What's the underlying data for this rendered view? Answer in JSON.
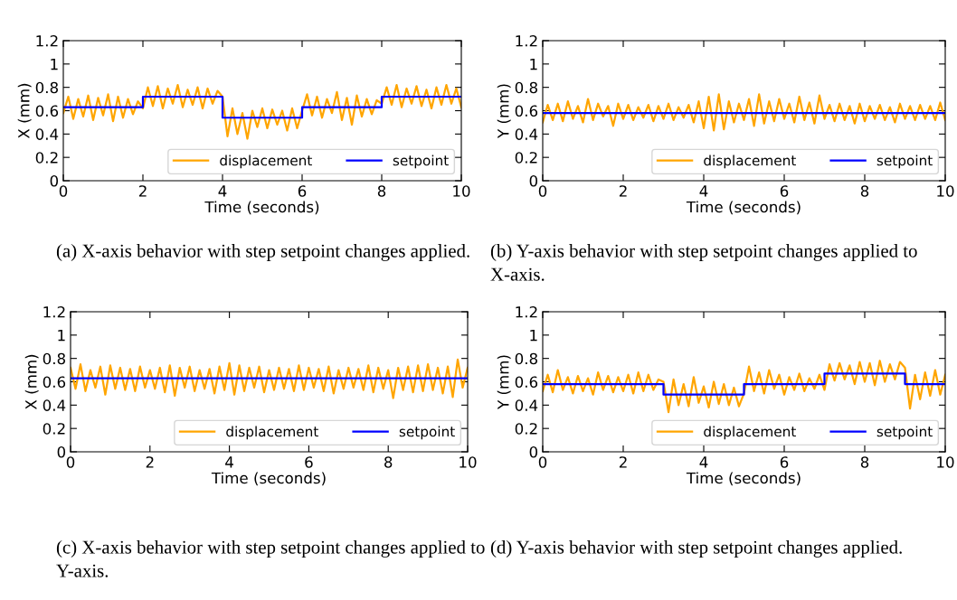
{
  "chart_data": [
    {
      "type": "line",
      "xlabel": "Time (seconds)",
      "ylabel": "X (mm)",
      "xlim": [
        0,
        10
      ],
      "ylim": [
        0,
        1.2
      ],
      "xticks": [
        0,
        2,
        4,
        6,
        8,
        10
      ],
      "yticks": [
        0,
        0.2,
        0.4,
        0.6,
        0.8,
        1,
        1.2
      ],
      "grid": false,
      "legend": "bottom right",
      "annotations": [
        "(a) X-axis behavior with step setpoint changes applied."
      ],
      "x": [
        0,
        0.125,
        0.25,
        0.375,
        0.5,
        0.625,
        0.75,
        0.875,
        1,
        1.125,
        1.25,
        1.375,
        1.5,
        1.625,
        1.75,
        1.875,
        2,
        2.125,
        2.25,
        2.375,
        2.5,
        2.625,
        2.75,
        2.875,
        3,
        3.125,
        3.25,
        3.375,
        3.5,
        3.625,
        3.75,
        3.875,
        4,
        4.125,
        4.25,
        4.375,
        4.5,
        4.625,
        4.75,
        4.875,
        5,
        5.125,
        5.25,
        5.375,
        5.5,
        5.625,
        5.75,
        5.875,
        6,
        6.125,
        6.25,
        6.375,
        6.5,
        6.625,
        6.75,
        6.875,
        7,
        7.125,
        7.25,
        7.375,
        7.5,
        7.625,
        7.75,
        7.875,
        8,
        8.125,
        8.25,
        8.375,
        8.5,
        8.625,
        8.75,
        8.875,
        9,
        9.125,
        9.25,
        9.375,
        9.5,
        9.625,
        9.75,
        9.875,
        10
      ],
      "series": [
        {
          "name": "displacement",
          "color": "#ffa500",
          "values": [
            0.58,
            0.72,
            0.53,
            0.7,
            0.55,
            0.73,
            0.52,
            0.71,
            0.56,
            0.74,
            0.51,
            0.72,
            0.54,
            0.7,
            0.57,
            0.68,
            0.62,
            0.8,
            0.64,
            0.81,
            0.62,
            0.79,
            0.66,
            0.82,
            0.63,
            0.78,
            0.65,
            0.8,
            0.62,
            0.79,
            0.66,
            0.77,
            0.72,
            0.38,
            0.62,
            0.4,
            0.58,
            0.36,
            0.6,
            0.46,
            0.62,
            0.45,
            0.61,
            0.48,
            0.6,
            0.43,
            0.62,
            0.45,
            0.6,
            0.74,
            0.56,
            0.72,
            0.54,
            0.7,
            0.58,
            0.76,
            0.52,
            0.71,
            0.48,
            0.73,
            0.55,
            0.7,
            0.57,
            0.69,
            0.66,
            0.8,
            0.65,
            0.82,
            0.63,
            0.79,
            0.66,
            0.81,
            0.64,
            0.78,
            0.62,
            0.8,
            0.65,
            0.82,
            0.66,
            0.79,
            0.63
          ]
        },
        {
          "name": "setpoint",
          "color": "#0000ff",
          "x": [
            0,
            2,
            2,
            4,
            4,
            6,
            6,
            8,
            8,
            10
          ],
          "values": [
            0.63,
            0.63,
            0.72,
            0.72,
            0.54,
            0.54,
            0.63,
            0.63,
            0.72,
            0.72
          ]
        }
      ]
    },
    {
      "type": "line",
      "xlabel": "Time (seconds)",
      "ylabel": "Y (mm)",
      "xlim": [
        0,
        10
      ],
      "ylim": [
        0,
        1.2
      ],
      "xticks": [
        0,
        2,
        4,
        6,
        8,
        10
      ],
      "yticks": [
        0,
        0.2,
        0.4,
        0.6,
        0.8,
        1,
        1.2
      ],
      "grid": false,
      "legend": "bottom right",
      "annotations": [
        "(b) Y-axis behavior with step setpoint changes applied to X-axis."
      ],
      "x": [
        0,
        0.125,
        0.25,
        0.375,
        0.5,
        0.625,
        0.75,
        0.875,
        1,
        1.125,
        1.25,
        1.375,
        1.5,
        1.625,
        1.75,
        1.875,
        2,
        2.125,
        2.25,
        2.375,
        2.5,
        2.625,
        2.75,
        2.875,
        3,
        3.125,
        3.25,
        3.375,
        3.5,
        3.625,
        3.75,
        3.875,
        4,
        4.125,
        4.25,
        4.375,
        4.5,
        4.625,
        4.75,
        4.875,
        5,
        5.125,
        5.25,
        5.375,
        5.5,
        5.625,
        5.75,
        5.875,
        6,
        6.125,
        6.25,
        6.375,
        6.5,
        6.625,
        6.75,
        6.875,
        7,
        7.125,
        7.25,
        7.375,
        7.5,
        7.625,
        7.75,
        7.875,
        8,
        8.125,
        8.25,
        8.375,
        8.5,
        8.625,
        8.75,
        8.875,
        9,
        9.125,
        9.25,
        9.375,
        9.5,
        9.625,
        9.75,
        9.875,
        10
      ],
      "series": [
        {
          "name": "displacement",
          "color": "#ffa500",
          "values": [
            0.5,
            0.65,
            0.52,
            0.66,
            0.51,
            0.68,
            0.53,
            0.64,
            0.5,
            0.7,
            0.52,
            0.66,
            0.55,
            0.64,
            0.47,
            0.66,
            0.53,
            0.65,
            0.52,
            0.63,
            0.54,
            0.65,
            0.51,
            0.64,
            0.53,
            0.66,
            0.52,
            0.63,
            0.54,
            0.65,
            0.5,
            0.68,
            0.45,
            0.72,
            0.43,
            0.74,
            0.44,
            0.68,
            0.5,
            0.66,
            0.52,
            0.7,
            0.47,
            0.74,
            0.49,
            0.68,
            0.51,
            0.7,
            0.53,
            0.66,
            0.5,
            0.72,
            0.52,
            0.67,
            0.49,
            0.73,
            0.53,
            0.65,
            0.51,
            0.66,
            0.52,
            0.64,
            0.49,
            0.66,
            0.51,
            0.64,
            0.53,
            0.65,
            0.52,
            0.63,
            0.5,
            0.66,
            0.53,
            0.64,
            0.52,
            0.65,
            0.53,
            0.64,
            0.52,
            0.67,
            0.52
          ]
        },
        {
          "name": "setpoint",
          "color": "#0000ff",
          "x": [
            0,
            10
          ],
          "values": [
            0.58,
            0.58
          ]
        }
      ]
    },
    {
      "type": "line",
      "xlabel": "Time (seconds)",
      "ylabel": "X (mm)",
      "xlim": [
        0,
        10
      ],
      "ylim": [
        0,
        1.2
      ],
      "xticks": [
        0,
        2,
        4,
        6,
        8,
        10
      ],
      "yticks": [
        0,
        0.2,
        0.4,
        0.6,
        0.8,
        1,
        1.2
      ],
      "grid": false,
      "legend": "bottom right",
      "annotations": [
        "(c) X-axis behavior with step setpoint changes applied to Y-axis."
      ],
      "x": [
        0,
        0.125,
        0.25,
        0.375,
        0.5,
        0.625,
        0.75,
        0.875,
        1,
        1.125,
        1.25,
        1.375,
        1.5,
        1.625,
        1.75,
        1.875,
        2,
        2.125,
        2.25,
        2.375,
        2.5,
        2.625,
        2.75,
        2.875,
        3,
        3.125,
        3.25,
        3.375,
        3.5,
        3.625,
        3.75,
        3.875,
        4,
        4.125,
        4.25,
        4.375,
        4.5,
        4.625,
        4.75,
        4.875,
        5,
        5.125,
        5.25,
        5.375,
        5.5,
        5.625,
        5.75,
        5.875,
        6,
        6.125,
        6.25,
        6.375,
        6.5,
        6.625,
        6.75,
        6.875,
        7,
        7.125,
        7.25,
        7.375,
        7.5,
        7.625,
        7.75,
        7.875,
        8,
        8.125,
        8.25,
        8.375,
        8.5,
        8.625,
        8.75,
        8.875,
        9,
        9.125,
        9.25,
        9.375,
        9.5,
        9.625,
        9.75,
        9.875,
        10
      ],
      "series": [
        {
          "name": "displacement",
          "color": "#ffa500",
          "values": [
            0.72,
            0.54,
            0.75,
            0.52,
            0.7,
            0.55,
            0.73,
            0.49,
            0.74,
            0.54,
            0.72,
            0.53,
            0.71,
            0.52,
            0.73,
            0.55,
            0.7,
            0.54,
            0.72,
            0.51,
            0.74,
            0.48,
            0.72,
            0.55,
            0.73,
            0.52,
            0.7,
            0.54,
            0.71,
            0.5,
            0.73,
            0.53,
            0.76,
            0.49,
            0.74,
            0.52,
            0.72,
            0.55,
            0.73,
            0.51,
            0.7,
            0.53,
            0.72,
            0.54,
            0.71,
            0.52,
            0.74,
            0.53,
            0.72,
            0.55,
            0.71,
            0.52,
            0.73,
            0.5,
            0.7,
            0.54,
            0.72,
            0.55,
            0.71,
            0.53,
            0.74,
            0.51,
            0.72,
            0.54,
            0.7,
            0.46,
            0.72,
            0.53,
            0.73,
            0.51,
            0.74,
            0.52,
            0.75,
            0.53,
            0.72,
            0.5,
            0.73,
            0.47,
            0.79,
            0.55,
            0.72
          ]
        },
        {
          "name": "setpoint",
          "color": "#0000ff",
          "x": [
            0,
            10
          ],
          "values": [
            0.63,
            0.63
          ]
        }
      ]
    },
    {
      "type": "line",
      "xlabel": "Time (seconds)",
      "ylabel": "Y (mm)",
      "xlim": [
        0,
        10
      ],
      "ylim": [
        0,
        1.2
      ],
      "xticks": [
        0,
        2,
        4,
        6,
        8,
        10
      ],
      "yticks": [
        0,
        0.2,
        0.4,
        0.6,
        0.8,
        1,
        1.2
      ],
      "grid": false,
      "legend": "bottom right",
      "annotations": [
        "(d) Y-axis behavior with step setpoint changes applied."
      ],
      "x": [
        0,
        0.125,
        0.25,
        0.375,
        0.5,
        0.625,
        0.75,
        0.875,
        1,
        1.125,
        1.25,
        1.375,
        1.5,
        1.625,
        1.75,
        1.875,
        2,
        2.125,
        2.25,
        2.375,
        2.5,
        2.625,
        2.75,
        2.875,
        3,
        3.125,
        3.25,
        3.375,
        3.5,
        3.625,
        3.75,
        3.875,
        4,
        4.125,
        4.25,
        4.375,
        4.5,
        4.625,
        4.75,
        4.875,
        5,
        5.125,
        5.25,
        5.375,
        5.5,
        5.625,
        5.75,
        5.875,
        6,
        6.125,
        6.25,
        6.375,
        6.5,
        6.625,
        6.75,
        6.875,
        7,
        7.125,
        7.25,
        7.375,
        7.5,
        7.625,
        7.75,
        7.875,
        8,
        8.125,
        8.25,
        8.375,
        8.5,
        8.625,
        8.75,
        8.875,
        9,
        9.125,
        9.25,
        9.375,
        9.5,
        9.625,
        9.75,
        9.875,
        10
      ],
      "series": [
        {
          "name": "displacement",
          "color": "#ffa500",
          "values": [
            0.52,
            0.66,
            0.51,
            0.7,
            0.53,
            0.64,
            0.5,
            0.65,
            0.52,
            0.63,
            0.49,
            0.68,
            0.53,
            0.65,
            0.51,
            0.64,
            0.52,
            0.66,
            0.5,
            0.68,
            0.52,
            0.66,
            0.53,
            0.62,
            0.6,
            0.34,
            0.62,
            0.4,
            0.58,
            0.39,
            0.64,
            0.42,
            0.56,
            0.38,
            0.6,
            0.41,
            0.58,
            0.4,
            0.55,
            0.39,
            0.5,
            0.73,
            0.52,
            0.68,
            0.5,
            0.7,
            0.54,
            0.66,
            0.49,
            0.64,
            0.53,
            0.67,
            0.52,
            0.63,
            0.54,
            0.66,
            0.53,
            0.75,
            0.61,
            0.76,
            0.62,
            0.74,
            0.58,
            0.77,
            0.6,
            0.76,
            0.57,
            0.78,
            0.6,
            0.75,
            0.62,
            0.77,
            0.72,
            0.37,
            0.66,
            0.45,
            0.68,
            0.48,
            0.7,
            0.49,
            0.66
          ]
        },
        {
          "name": "setpoint",
          "color": "#0000ff",
          "x": [
            0,
            3,
            3,
            5,
            5,
            7,
            7,
            9,
            9,
            10
          ],
          "values": [
            0.58,
            0.58,
            0.49,
            0.49,
            0.58,
            0.58,
            0.67,
            0.67,
            0.58,
            0.58
          ]
        }
      ]
    }
  ]
}
